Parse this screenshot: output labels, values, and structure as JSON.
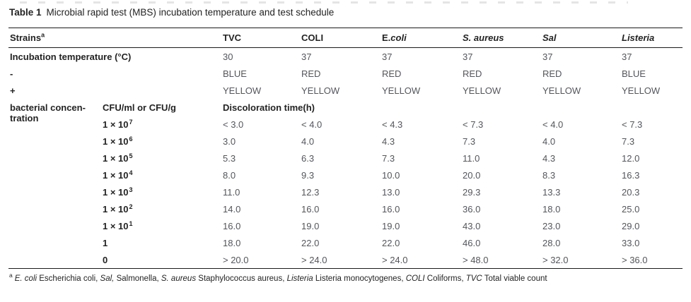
{
  "page": {
    "title_label": "Table 1",
    "title_caption": "Microbial rapid test (MBS) incubation temperature and test schedule"
  },
  "table": {
    "strains_label": "Strains",
    "strains_sup": "a",
    "columns": [
      {
        "parts": [
          {
            "t": "TVC",
            "i": false
          }
        ]
      },
      {
        "parts": [
          {
            "t": "COLI",
            "i": false
          }
        ]
      },
      {
        "parts": [
          {
            "t": "E.",
            "i": false
          },
          {
            "t": "coli",
            "i": true
          }
        ]
      },
      {
        "parts": [
          {
            "t": "S. aureus",
            "i": true
          }
        ]
      },
      {
        "parts": [
          {
            "t": "Sal",
            "i": true
          }
        ]
      },
      {
        "parts": [
          {
            "t": "Listeria",
            "i": true
          }
        ]
      }
    ],
    "top_rows": [
      {
        "label": "Incubation temperature (°C)",
        "values": [
          "30",
          "37",
          "37",
          "37",
          "37",
          "37"
        ]
      },
      {
        "label": "-",
        "values": [
          "BLUE",
          "RED",
          "RED",
          "RED",
          "RED",
          "BLUE"
        ]
      },
      {
        "label": "+",
        "values": [
          "YELLOW",
          "YELLOW",
          "YELLOW",
          "YELLOW",
          "YELLOW",
          "YELLOW"
        ]
      }
    ],
    "concentration": {
      "label_line1": "bacterial concen-",
      "label_line2": "tration",
      "unit_header": "CFU/ml or CFU/g",
      "time_header": "Discoloration time(h)",
      "rows": [
        {
          "base": "1 × 10",
          "exp": "7",
          "values": [
            "< 3.0",
            "< 4.0",
            "< 4.3",
            "< 7.3",
            "< 4.0",
            "< 7.3"
          ]
        },
        {
          "base": "1 × 10",
          "exp": "6",
          "values": [
            "3.0",
            "4.0",
            "4.3",
            "7.3",
            "4.0",
            "7.3"
          ]
        },
        {
          "base": "1 × 10",
          "exp": "5",
          "values": [
            "5.3",
            "6.3",
            "7.3",
            "11.0",
            "4.3",
            "12.0"
          ]
        },
        {
          "base": "1 × 10",
          "exp": "4",
          "values": [
            "8.0",
            "9.3",
            "10.0",
            "20.0",
            "8.3",
            "16.3"
          ]
        },
        {
          "base": "1 × 10",
          "exp": "3",
          "values": [
            "11.0",
            "12.3",
            "13.0",
            "29.3",
            "13.3",
            "20.3"
          ]
        },
        {
          "base": "1 × 10",
          "exp": "2",
          "values": [
            "14.0",
            "16.0",
            "16.0",
            "36.0",
            "18.0",
            "25.0"
          ]
        },
        {
          "base": "1 × 10",
          "exp": "1",
          "values": [
            "16.0",
            "19.0",
            "19.0",
            "43.0",
            "23.0",
            "29.0"
          ]
        },
        {
          "base": "1",
          "exp": "",
          "values": [
            "18.0",
            "22.0",
            "22.0",
            "46.0",
            "28.0",
            "33.0"
          ]
        },
        {
          "base": "0",
          "exp": "",
          "values": [
            "> 20.0",
            "> 24.0",
            "> 24.0",
            "> 48.0",
            "> 32.0",
            "> 36.0"
          ]
        }
      ]
    }
  },
  "footnote": {
    "sup": "a",
    "segments": [
      {
        "t": "E. coli",
        "i": true
      },
      {
        "t": " Escherichia coli, ",
        "i": false
      },
      {
        "t": "Sal,",
        "i": true
      },
      {
        "t": " Salmonella, ",
        "i": false
      },
      {
        "t": "S. aureus",
        "i": true
      },
      {
        "t": " Staphylococcus aureus, ",
        "i": false
      },
      {
        "t": "Listeria",
        "i": true
      },
      {
        "t": " Listeria monocytogenes, ",
        "i": false
      },
      {
        "t": "COLI",
        "i": true
      },
      {
        "t": " Coliforms, ",
        "i": false
      },
      {
        "t": "TVC",
        "i": true
      },
      {
        "t": " Total viable count",
        "i": false
      }
    ]
  },
  "colors": {
    "heading_text": "#232323",
    "value_text": "#54565b",
    "rule": "#1a1a1a"
  }
}
